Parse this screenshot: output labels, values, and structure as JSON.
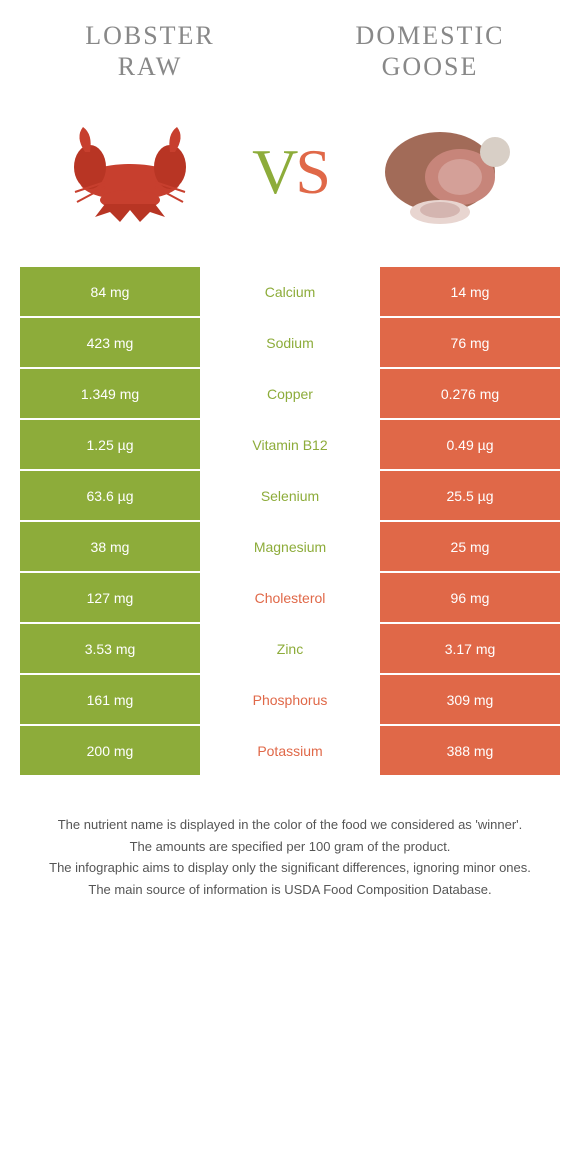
{
  "header": {
    "left_title_line1": "Lobster",
    "left_title_line2": "Raw",
    "right_title_line1": "Domestic",
    "right_title_line2": "goose",
    "vs_v": "V",
    "vs_s": "S"
  },
  "colors": {
    "left": "#8dac3a",
    "right": "#e06848",
    "title": "#888888",
    "footer": "#555555",
    "bg": "#ffffff"
  },
  "table": {
    "rows": [
      {
        "left": "84 mg",
        "nutrient": "Calcium",
        "right": "14 mg",
        "winner": "left"
      },
      {
        "left": "423 mg",
        "nutrient": "Sodium",
        "right": "76 mg",
        "winner": "left"
      },
      {
        "left": "1.349 mg",
        "nutrient": "Copper",
        "right": "0.276 mg",
        "winner": "left"
      },
      {
        "left": "1.25 µg",
        "nutrient": "Vitamin B12",
        "right": "0.49 µg",
        "winner": "left"
      },
      {
        "left": "63.6 µg",
        "nutrient": "Selenium",
        "right": "25.5 µg",
        "winner": "left"
      },
      {
        "left": "38 mg",
        "nutrient": "Magnesium",
        "right": "25 mg",
        "winner": "left"
      },
      {
        "left": "127 mg",
        "nutrient": "Cholesterol",
        "right": "96 mg",
        "winner": "right"
      },
      {
        "left": "3.53 mg",
        "nutrient": "Zinc",
        "right": "3.17 mg",
        "winner": "left"
      },
      {
        "left": "161 mg",
        "nutrient": "Phosphorus",
        "right": "309 mg",
        "winner": "right"
      },
      {
        "left": "200 mg",
        "nutrient": "Potassium",
        "right": "388 mg",
        "winner": "right"
      }
    ]
  },
  "footer": {
    "line1": "The nutrient name is displayed in the color of the food we considered as 'winner'.",
    "line2": "The amounts are specified per 100 gram of the product.",
    "line3": "The infographic aims to display only the significant differences, ignoring minor ones.",
    "line4": "The main source of information is USDA Food Composition Database."
  }
}
